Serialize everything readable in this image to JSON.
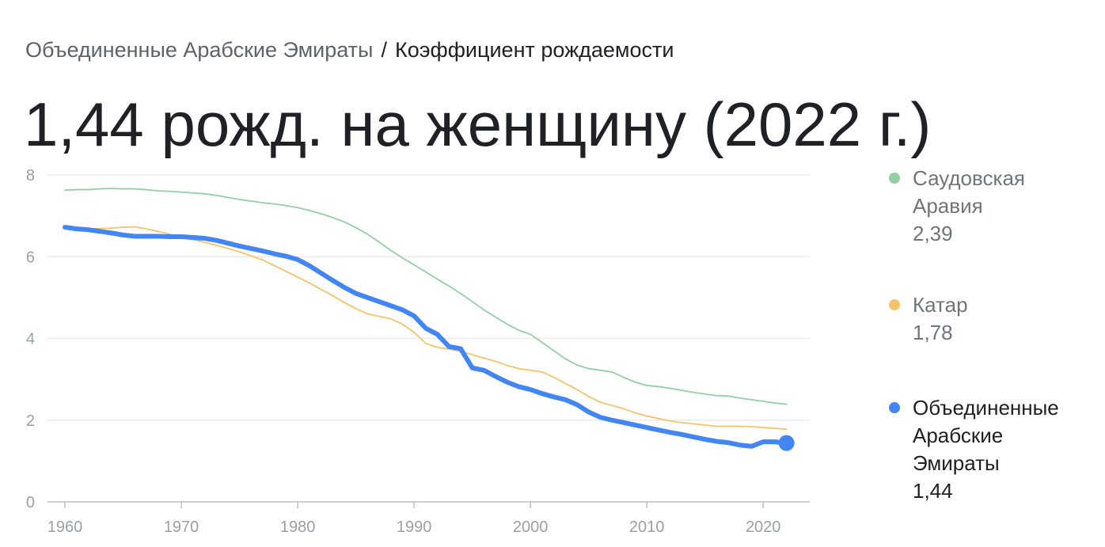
{
  "chart_data": {
    "type": "line",
    "breadcrumb": [
      "Объединенные Арабские Эмираты",
      "/",
      "Коэффициент рождаемости"
    ],
    "title": "1,44 рожд. на женщину (2022 г.)",
    "x": [
      1960,
      1961,
      1962,
      1963,
      1964,
      1965,
      1966,
      1967,
      1968,
      1969,
      1970,
      1971,
      1972,
      1973,
      1974,
      1975,
      1976,
      1977,
      1978,
      1979,
      1980,
      1981,
      1982,
      1983,
      1984,
      1985,
      1986,
      1987,
      1988,
      1989,
      1990,
      1991,
      1992,
      1993,
      1994,
      1995,
      1996,
      1997,
      1998,
      1999,
      2000,
      2001,
      2002,
      2003,
      2004,
      2005,
      2006,
      2007,
      2008,
      2009,
      2010,
      2011,
      2012,
      2013,
      2014,
      2015,
      2016,
      2017,
      2018,
      2019,
      2020,
      2021,
      2022
    ],
    "series": [
      {
        "name": "Саудовская Аравия",
        "color": "#93cfa4",
        "legend_value": "2,39",
        "values": [
          7.63,
          7.64,
          7.64,
          7.66,
          7.67,
          7.66,
          7.66,
          7.64,
          7.61,
          7.6,
          7.58,
          7.56,
          7.54,
          7.5,
          7.45,
          7.4,
          7.36,
          7.32,
          7.29,
          7.25,
          7.2,
          7.13,
          7.05,
          6.96,
          6.85,
          6.71,
          6.55,
          6.36,
          6.15,
          5.97,
          5.8,
          5.63,
          5.45,
          5.28,
          5.1,
          4.9,
          4.7,
          4.52,
          4.35,
          4.2,
          4.1,
          3.9,
          3.7,
          3.5,
          3.35,
          3.26,
          3.22,
          3.18,
          3.05,
          2.93,
          2.85,
          2.82,
          2.78,
          2.73,
          2.68,
          2.64,
          2.6,
          2.59,
          2.54,
          2.5,
          2.46,
          2.42,
          2.39
        ]
      },
      {
        "name": "Катар",
        "color": "#f5c36b",
        "legend_value": "1,78",
        "values": [
          6.7,
          6.69,
          6.68,
          6.69,
          6.7,
          6.72,
          6.73,
          6.68,
          6.62,
          6.55,
          6.48,
          6.42,
          6.35,
          6.28,
          6.2,
          6.12,
          6.02,
          5.92,
          5.78,
          5.64,
          5.5,
          5.36,
          5.2,
          5.05,
          4.88,
          4.73,
          4.6,
          4.54,
          4.48,
          4.35,
          4.15,
          3.88,
          3.78,
          3.74,
          3.68,
          3.6,
          3.52,
          3.44,
          3.34,
          3.26,
          3.22,
          3.18,
          3.05,
          2.9,
          2.75,
          2.58,
          2.44,
          2.36,
          2.28,
          2.18,
          2.1,
          2.04,
          1.98,
          1.94,
          1.91,
          1.88,
          1.85,
          1.85,
          1.85,
          1.84,
          1.82,
          1.8,
          1.78
        ]
      },
      {
        "name": "Объединенные Арабские Эмираты",
        "color": "#4285f4",
        "legend_value": "1,44",
        "values": [
          6.72,
          6.68,
          6.66,
          6.62,
          6.58,
          6.53,
          6.5,
          6.5,
          6.5,
          6.49,
          6.49,
          6.47,
          6.45,
          6.4,
          6.33,
          6.26,
          6.2,
          6.14,
          6.07,
          6.01,
          5.93,
          5.78,
          5.6,
          5.42,
          5.25,
          5.1,
          5.0,
          4.9,
          4.8,
          4.7,
          4.55,
          4.25,
          4.1,
          3.8,
          3.75,
          3.28,
          3.22,
          3.07,
          2.93,
          2.82,
          2.75,
          2.65,
          2.57,
          2.5,
          2.38,
          2.2,
          2.07,
          2.0,
          1.94,
          1.88,
          1.82,
          1.76,
          1.7,
          1.65,
          1.59,
          1.53,
          1.48,
          1.45,
          1.39,
          1.36,
          1.47,
          1.47,
          1.44
        ]
      }
    ],
    "xlim": [
      1958.5,
      2024
    ],
    "xticks": [
      1960,
      1970,
      1980,
      1990,
      2000,
      2010,
      2020
    ],
    "ylim": [
      0,
      8
    ],
    "yticks": [
      0,
      2,
      4,
      6,
      8
    ],
    "grid": true
  }
}
